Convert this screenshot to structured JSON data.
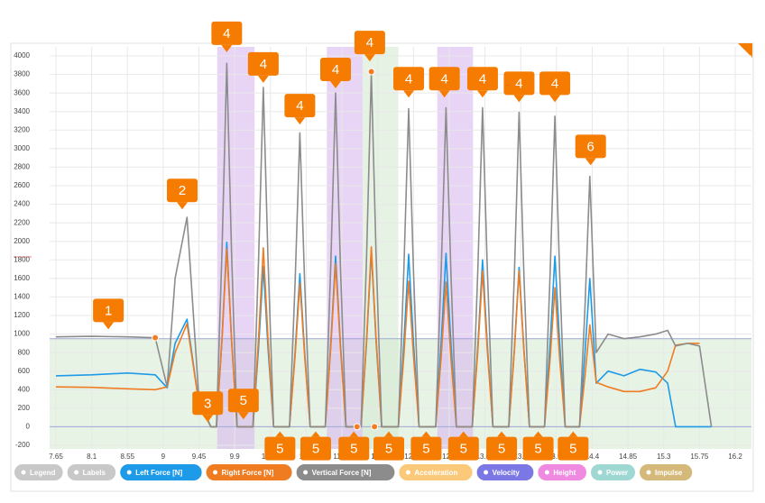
{
  "chart_data": {
    "type": "line",
    "x": [
      7.65,
      8.1,
      8.55,
      8.9,
      9.05,
      9.15,
      9.3,
      9.45,
      9.6,
      9.67,
      9.74,
      9.8,
      9.86,
      9.93,
      10.13,
      10.2,
      10.26,
      10.32,
      10.39,
      10.59,
      10.66,
      10.72,
      10.78,
      10.85,
      11.04,
      11.11,
      11.17,
      11.23,
      11.3,
      11.49,
      11.56,
      11.62,
      11.68,
      11.75,
      11.96,
      12.03,
      12.09,
      12.15,
      12.22,
      12.43,
      12.5,
      12.56,
      12.62,
      12.69,
      12.89,
      12.96,
      13.02,
      13.08,
      13.15,
      13.35,
      13.42,
      13.48,
      13.54,
      13.61,
      13.8,
      13.87,
      13.93,
      13.99,
      14.06,
      14.24,
      14.31,
      14.37,
      14.45,
      14.6,
      14.8,
      15,
      15.2,
      15.35,
      15.45,
      15.6,
      15.75,
      15.9
    ],
    "series": [
      {
        "name": "Left Force [N]",
        "color": "#1e9be8",
        "values": [
          550,
          560,
          580,
          560,
          420,
          900,
          1160,
          250,
          0,
          0,
          950,
          1990,
          950,
          0,
          0,
          850,
          1730,
          850,
          0,
          0,
          800,
          1650,
          800,
          0,
          0,
          900,
          1840,
          900,
          0,
          0,
          920,
          1890,
          920,
          0,
          0,
          910,
          1860,
          910,
          0,
          0,
          920,
          1870,
          920,
          0,
          0,
          880,
          1800,
          880,
          0,
          0,
          840,
          1720,
          840,
          0,
          0,
          900,
          1840,
          900,
          0,
          0,
          800,
          1600,
          470,
          600,
          550,
          620,
          590,
          470,
          0,
          0,
          0,
          0
        ]
      },
      {
        "name": "Right Force [N]",
        "color": "#f07c22",
        "values": [
          430,
          425,
          410,
          400,
          430,
          800,
          1110,
          250,
          0,
          0,
          940,
          1920,
          940,
          0,
          0,
          950,
          1930,
          950,
          0,
          0,
          760,
          1550,
          760,
          0,
          0,
          860,
          1760,
          860,
          0,
          0,
          950,
          1940,
          950,
          0,
          0,
          770,
          1570,
          770,
          0,
          0,
          760,
          1560,
          760,
          0,
          0,
          820,
          1680,
          820,
          0,
          0,
          820,
          1680,
          820,
          0,
          0,
          730,
          1500,
          730,
          0,
          0,
          550,
          1100,
          480,
          430,
          380,
          380,
          420,
          600,
          880,
          900,
          900,
          null
        ]
      },
      {
        "name": "Vertical Force [N]",
        "color": "#8c8c8c",
        "values": [
          970,
          975,
          970,
          960,
          430,
          1600,
          2260,
          300,
          0,
          0,
          1900,
          3920,
          1900,
          0,
          0,
          1800,
          3660,
          1800,
          0,
          0,
          1550,
          3170,
          1550,
          0,
          0,
          1750,
          3600,
          1750,
          0,
          0,
          1850,
          3820,
          1850,
          0,
          0,
          1700,
          3430,
          1700,
          0,
          0,
          1700,
          3440,
          1700,
          0,
          0,
          1700,
          3440,
          1700,
          0,
          0,
          1650,
          3390,
          1650,
          0,
          0,
          1650,
          3350,
          1650,
          0,
          0,
          1300,
          2700,
          800,
          1000,
          950,
          970,
          1000,
          1040,
          870,
          900,
          870,
          0
        ]
      }
    ],
    "xlim": [
      7.65,
      16.2
    ],
    "xticks": [
      7.65,
      8.1,
      8.55,
      9,
      9.45,
      9.9,
      10.35,
      10.8,
      11.25,
      11.7,
      12.15,
      12.6,
      13.05,
      13.5,
      13.95,
      14.4,
      14.85,
      15.3,
      15.75,
      16.2
    ],
    "ylim": [
      -200,
      4000
    ],
    "yticks": [
      -200,
      0,
      200,
      400,
      600,
      800,
      1000,
      1200,
      1400,
      1600,
      1800,
      2000,
      2200,
      2400,
      2600,
      2800,
      3000,
      3200,
      3400,
      3600,
      3800,
      4000
    ],
    "grid": true,
    "threshold": {
      "value": 950,
      "color": "#c9e4c5"
    },
    "regions": [
      {
        "x": [
          9.68,
          10.15
        ],
        "color": "#d9b8ee"
      },
      {
        "x": [
          11.06,
          11.51
        ],
        "color": "#d9b8ee"
      },
      {
        "x": [
          11.51,
          11.96
        ],
        "color": "#d5ead2"
      },
      {
        "x": [
          12.45,
          12.9
        ],
        "color": "#d9b8ee"
      }
    ],
    "points": {
      "color": "#f57c20",
      "x": [
        8.9,
        11.62,
        11.44,
        11.66
      ],
      "y": [
        960,
        3830,
        0,
        0
      ]
    },
    "annotations": [
      {
        "label": "1",
        "x": 8.31,
        "y": 1050
      },
      {
        "label": "2",
        "x": 9.24,
        "y": 2345
      },
      {
        "label": "3",
        "x": 9.56,
        "y": 50
      },
      {
        "label": "5",
        "x": 10.01,
        "y": 80
      },
      {
        "label": "4",
        "x": 9.8,
        "y": 4040
      },
      {
        "label": "4",
        "x": 10.26,
        "y": 3710
      },
      {
        "label": "4",
        "x": 10.72,
        "y": 3260
      },
      {
        "label": "4",
        "x": 11.17,
        "y": 3650
      },
      {
        "label": "4",
        "x": 11.6,
        "y": 3940
      },
      {
        "label": "4",
        "x": 12.09,
        "y": 3550
      },
      {
        "label": "4",
        "x": 12.54,
        "y": 3550
      },
      {
        "label": "4",
        "x": 13.02,
        "y": 3550
      },
      {
        "label": "4",
        "x": 13.48,
        "y": 3500
      },
      {
        "label": "4",
        "x": 13.93,
        "y": 3500
      },
      {
        "label": "6",
        "x": 14.38,
        "y": 2820
      },
      {
        "label": "5",
        "x": 10.47,
        "y": -50
      },
      {
        "label": "5",
        "x": 10.92,
        "y": -50
      },
      {
        "label": "5",
        "x": 11.4,
        "y": -50
      },
      {
        "label": "5",
        "x": 11.84,
        "y": -50
      },
      {
        "label": "5",
        "x": 12.31,
        "y": -50
      },
      {
        "label": "5",
        "x": 12.78,
        "y": -50
      },
      {
        "label": "5",
        "x": 13.26,
        "y": -50
      },
      {
        "label": "5",
        "x": 13.72,
        "y": -50
      },
      {
        "label": "5",
        "x": 14.16,
        "y": -50
      }
    ],
    "toggles_before": [
      {
        "name": "Legend",
        "color": "#c8c8c8"
      },
      {
        "name": "Labels",
        "color": "#c8c8c8"
      }
    ],
    "toggles_after": [
      {
        "name": "Acceleration",
        "color": "#fcc97a"
      },
      {
        "name": "Velocity",
        "color": "#7b78e6"
      },
      {
        "name": "Height",
        "color": "#f08ae0"
      },
      {
        "name": "Power",
        "color": "#9fd8d3"
      },
      {
        "name": "Impulse",
        "color": "#d4b97a"
      }
    ]
  }
}
